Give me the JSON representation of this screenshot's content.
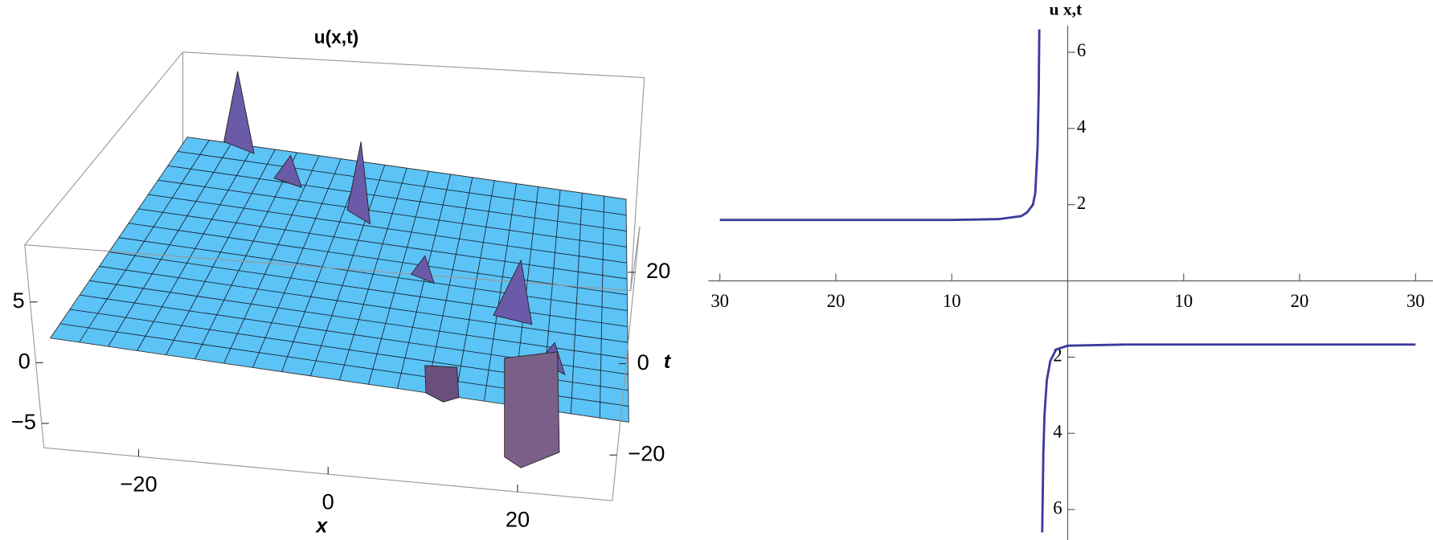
{
  "chart_data": [
    {
      "type": "surface",
      "title": "u(x,t)",
      "x_label": "x",
      "y_label": "t",
      "xlim": [
        -30,
        30
      ],
      "ylim": [
        -30,
        30
      ],
      "zlim": [
        -7,
        9.7
      ],
      "xticks": [
        {
          "value": -20,
          "label": "−20"
        },
        0,
        20
      ],
      "yticks": [
        {
          "value": -20,
          "label": "−20"
        },
        0,
        20
      ],
      "zticks": [
        {
          "value": -5,
          "label": "−5"
        },
        0,
        5
      ],
      "color": "#5cc3f6"
    },
    {
      "type": "line",
      "y_label": "u x,t",
      "x": [
        -30,
        -10,
        -6,
        -4,
        -3.5,
        -3,
        -2.8,
        -2.6,
        -2.5,
        -2.45,
        -2.4,
        -2.2,
        -2.1,
        -2.0,
        -1.8,
        -1.5,
        -1,
        0,
        5,
        30
      ],
      "values": [
        1.6,
        1.6,
        1.62,
        1.7,
        1.8,
        2.0,
        2.3,
        3.5,
        5,
        6.6,
        null,
        -6.6,
        -4.5,
        -3.5,
        -2.6,
        -2.1,
        -1.8,
        -1.7,
        -1.67,
        -1.67
      ],
      "color": "#3b3b9c",
      "xlim": [
        -31,
        31.5
      ],
      "ylim": [
        -6.8,
        6.7
      ],
      "xticks": [
        {
          "value": -30,
          "label": "30"
        },
        {
          "value": -20,
          "label": "20"
        },
        {
          "value": -10,
          "label": "10"
        },
        10,
        20,
        30
      ],
      "yticks": [
        {
          "value": -6,
          "label": "6"
        },
        {
          "value": -4,
          "label": "4"
        },
        {
          "value": -2,
          "label": "2"
        },
        2,
        4,
        6
      ]
    }
  ]
}
